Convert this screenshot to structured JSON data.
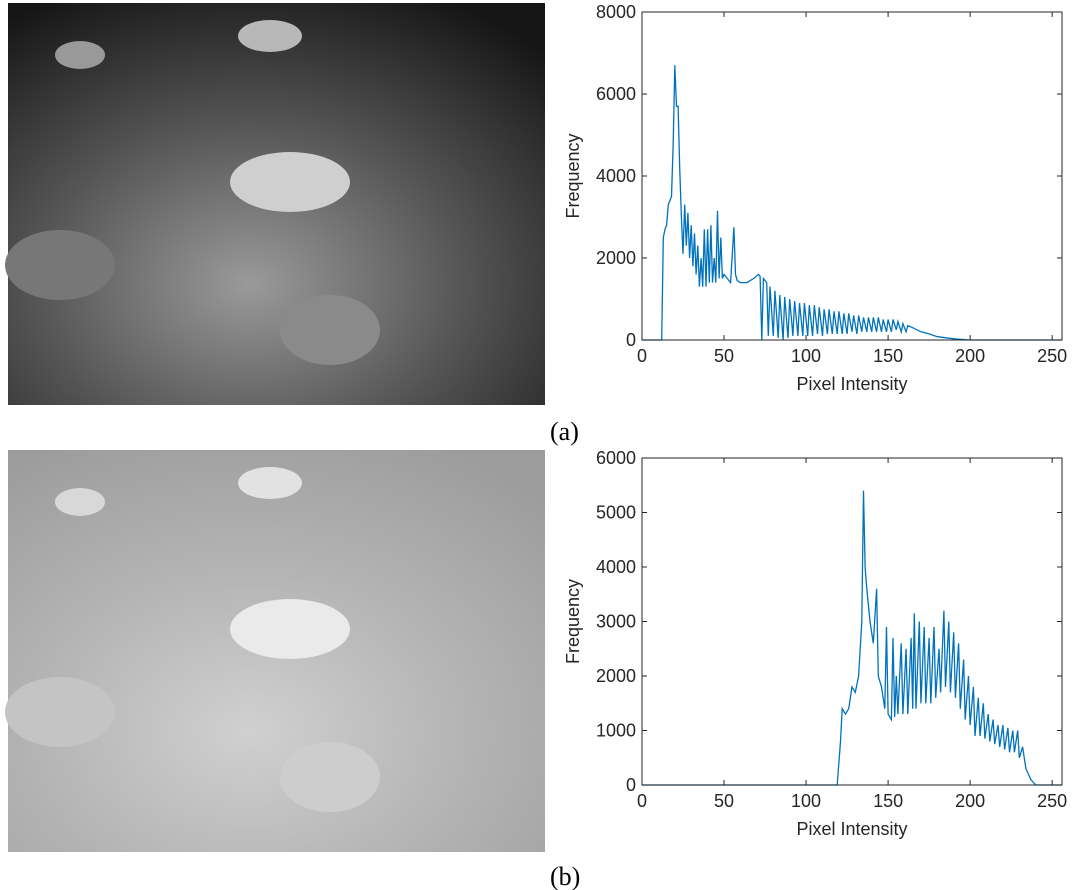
{
  "chart_data": [
    {
      "type": "line",
      "xlabel": "Pixel Intensity",
      "ylabel": "Frequency",
      "color": "#0072bd",
      "xlim": [
        0,
        256
      ],
      "xticks": [
        0,
        50,
        100,
        150,
        200,
        250
      ],
      "ylim": [
        0,
        8000
      ],
      "yticks": [
        0,
        2000,
        4000,
        6000,
        8000
      ],
      "x": [
        0,
        12,
        13,
        14,
        15,
        16,
        17,
        18,
        19,
        20,
        21,
        22,
        23,
        24,
        25,
        26,
        27,
        28,
        29,
        30,
        31,
        32,
        33,
        34,
        35,
        36,
        37,
        38,
        39,
        40,
        41,
        42,
        43,
        44,
        45,
        46,
        47,
        48,
        49,
        50,
        52,
        54,
        56,
        57,
        58,
        60,
        64,
        68,
        71,
        72,
        73,
        74,
        76,
        77,
        78,
        80,
        81,
        83,
        84,
        86,
        87,
        89,
        90,
        92,
        93,
        95,
        96,
        98,
        99,
        101,
        102,
        104,
        105,
        107,
        108,
        110,
        111,
        113,
        114,
        116,
        117,
        119,
        120,
        122,
        123,
        125,
        126,
        128,
        129,
        131,
        132,
        134,
        135,
        137,
        138,
        140,
        141,
        143,
        144,
        146,
        147,
        149,
        150,
        152,
        153,
        155,
        156,
        158,
        159,
        161,
        162,
        165,
        170,
        175,
        180,
        190,
        200,
        256
      ],
      "values": [
        0,
        0,
        2500,
        2700,
        2800,
        3300,
        3400,
        3500,
        4800,
        6700,
        5700,
        5700,
        4200,
        3000,
        2100,
        3300,
        2300,
        3100,
        2000,
        2800,
        1800,
        2600,
        1600,
        2300,
        1300,
        2000,
        1300,
        2700,
        1300,
        2700,
        1400,
        2800,
        1400,
        2000,
        1400,
        3150,
        1500,
        2500,
        1500,
        1600,
        1500,
        1400,
        2750,
        1600,
        1450,
        1400,
        1400,
        1500,
        1600,
        1550,
        0,
        1500,
        1400,
        100,
        1300,
        100,
        1200,
        50,
        1100,
        0,
        1050,
        50,
        1000,
        100,
        950,
        100,
        900,
        100,
        900,
        100,
        850,
        100,
        850,
        150,
        800,
        100,
        750,
        150,
        750,
        150,
        700,
        150,
        700,
        150,
        650,
        150,
        650,
        200,
        600,
        150,
        600,
        200,
        550,
        200,
        550,
        200,
        550,
        200,
        550,
        200,
        500,
        200,
        500,
        200,
        500,
        250,
        450,
        200,
        400,
        200,
        350,
        300,
        200,
        150,
        80,
        30,
        0,
        0
      ]
    },
    {
      "type": "line",
      "xlabel": "Pixel Intensity",
      "ylabel": "Frequency",
      "color": "#0072bd",
      "xlim": [
        0,
        256
      ],
      "xticks": [
        0,
        50,
        100,
        150,
        200,
        250
      ],
      "ylim": [
        0,
        6000
      ],
      "yticks": [
        0,
        1000,
        2000,
        3000,
        4000,
        5000,
        6000
      ],
      "x": [
        0,
        119,
        121,
        122,
        124,
        126,
        128,
        130,
        132,
        134,
        135,
        136,
        137,
        139,
        141,
        143,
        144,
        146,
        148,
        149,
        150,
        152,
        153,
        154,
        155,
        156,
        158,
        159,
        161,
        162,
        164,
        165,
        166,
        167,
        169,
        170,
        172,
        173,
        175,
        176,
        178,
        179,
        181,
        182,
        184,
        185,
        187,
        188,
        190,
        191,
        193,
        194,
        196,
        197,
        199,
        200,
        202,
        203,
        205,
        206,
        208,
        209,
        211,
        212,
        214,
        215,
        217,
        218,
        220,
        221,
        223,
        224,
        226,
        227,
        229,
        230,
        232,
        234,
        237,
        240,
        256
      ],
      "values": [
        0,
        0,
        800,
        1400,
        1300,
        1400,
        1800,
        1700,
        2000,
        3000,
        5400,
        4000,
        3600,
        3000,
        2600,
        3600,
        2000,
        1800,
        1400,
        2900,
        1300,
        1200,
        2700,
        1250,
        2000,
        1300,
        2600,
        1300,
        2500,
        1300,
        2700,
        1400,
        3150,
        1400,
        3000,
        1500,
        2900,
        1500,
        2700,
        1500,
        2900,
        1600,
        2500,
        1700,
        3200,
        1800,
        3000,
        1700,
        2800,
        1600,
        2600,
        1400,
        2300,
        1200,
        2000,
        1100,
        1800,
        900,
        1600,
        900,
        1500,
        850,
        1300,
        800,
        1200,
        750,
        1100,
        700,
        1100,
        650,
        1050,
        600,
        1000,
        600,
        1000,
        500,
        700,
        300,
        100,
        0,
        0
      ]
    }
  ],
  "captions": [
    "(a)",
    "(b)"
  ]
}
